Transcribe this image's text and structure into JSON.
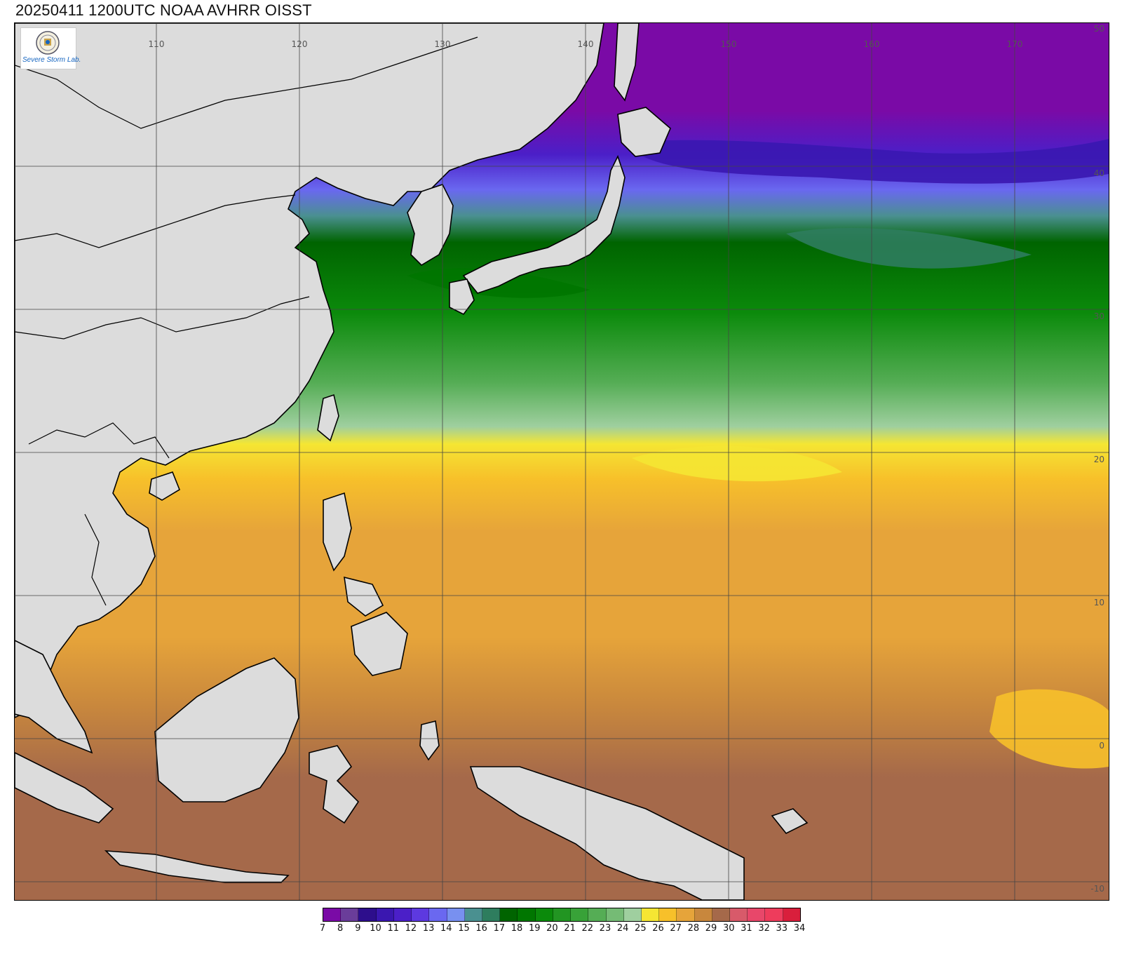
{
  "title": "20250411 1200UTC NOAA AVHRR OISST",
  "logo": {
    "text": "Severe Storm Lab.",
    "seal_icon": "seal-icon"
  },
  "map": {
    "longitude_labels": [
      "110",
      "120",
      "130",
      "140",
      "150",
      "160",
      "170"
    ],
    "latitude_labels": [
      "50",
      "40",
      "30",
      "20",
      "10",
      "0",
      "-10"
    ],
    "gridline_color": "#444444",
    "land_color": "#dcdcdc",
    "coastline_color": "#000000"
  },
  "colorbar": {
    "ticks": [
      "7",
      "8",
      "9",
      "10",
      "11",
      "12",
      "13",
      "14",
      "15",
      "16",
      "17",
      "18",
      "19",
      "20",
      "21",
      "22",
      "23",
      "24",
      "25",
      "26",
      "27",
      "28",
      "29",
      "30",
      "31",
      "32",
      "33",
      "34"
    ],
    "colors": [
      "#7a0aa6",
      "#6a3d9a",
      "#2d0e8c",
      "#3a17b0",
      "#4b1fc8",
      "#5d39e0",
      "#6a68f0",
      "#7890f0",
      "#4a9090",
      "#2e7d5e",
      "#006400",
      "#007600",
      "#0b8a0b",
      "#229522",
      "#38a238",
      "#55ad55",
      "#75bb75",
      "#9fcf9f",
      "#f5e633",
      "#f7c02a",
      "#e6a43a",
      "#c8873d",
      "#a5694a",
      "#d85a6a",
      "#e8476a",
      "#ee3c5c",
      "#d91f3c"
    ]
  }
}
